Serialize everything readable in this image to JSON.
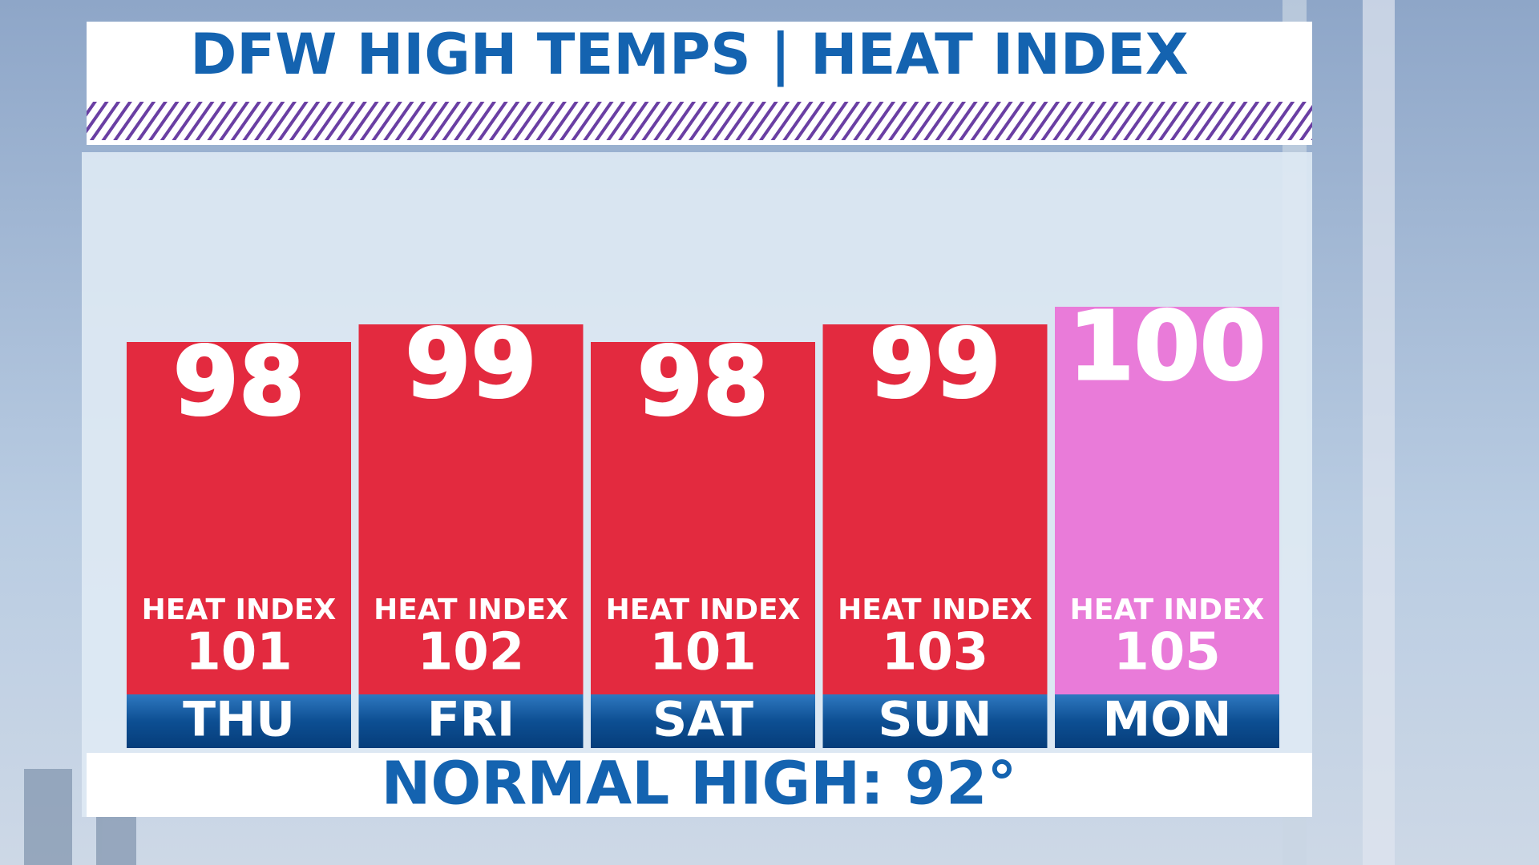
{
  "chart_data": {
    "type": "bar",
    "title": "DFW HIGH TEMPS | HEAT INDEX",
    "subtitle": "NORMAL HIGH:  92°",
    "categories": [
      "THU",
      "FRI",
      "SAT",
      "SUN",
      "MON"
    ],
    "values": [
      98,
      99,
      98,
      99,
      100
    ],
    "colors": [
      "#e32a3f",
      "#e32a3f",
      "#e32a3f",
      "#e32a3f",
      "#e97bd9"
    ],
    "heat_index_label": "HEAT INDEX",
    "heat_index": [
      101,
      102,
      101,
      103,
      105
    ],
    "ylim": [
      78,
      108
    ]
  }
}
